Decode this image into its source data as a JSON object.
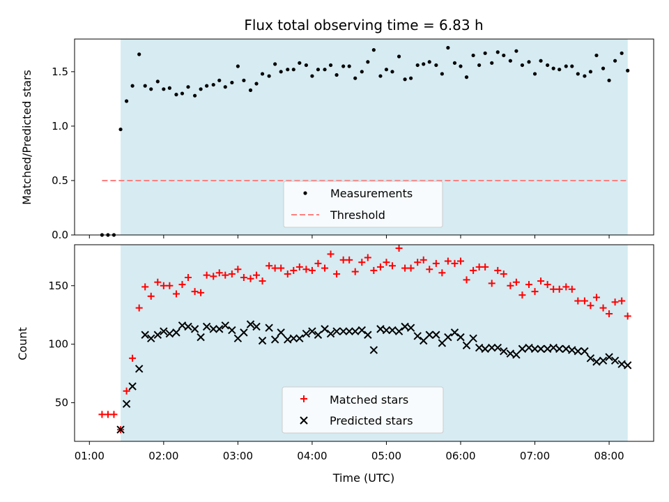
{
  "chart_data": [
    {
      "type": "scatter",
      "title": "Flux total observing time = 6.83 h",
      "xlabel": "",
      "ylabel": "Matched/Predicted stars",
      "ylim": [
        0,
        1.8
      ],
      "yticks": [
        0.0,
        0.5,
        1.0,
        1.5
      ],
      "ytick_labels": [
        "0.0",
        "0.5",
        "1.0",
        "1.5"
      ],
      "xlim_hours": [
        0.8,
        8.6
      ],
      "shaded_span_hours": [
        1.42,
        8.25
      ],
      "shade_color": "#add8e6",
      "legend": {
        "position": "bottom-center",
        "entries": [
          "Measurements",
          "Threshold"
        ]
      },
      "threshold": {
        "name": "Threshold",
        "value": 0.5,
        "x_start_hours": 1.17,
        "x_end_hours": 8.25,
        "color": "#ff7f7f"
      },
      "series": [
        {
          "name": "Measurements",
          "marker": "dot",
          "color": "#000000",
          "x": [
            1.17,
            1.25,
            1.33,
            1.42,
            1.5,
            1.58,
            1.67,
            1.75,
            1.83,
            1.92,
            2.0,
            2.08,
            2.17,
            2.25,
            2.33,
            2.42,
            2.5,
            2.58,
            2.67,
            2.75,
            2.83,
            2.92,
            3.0,
            3.08,
            3.17,
            3.25,
            3.33,
            3.42,
            3.5,
            3.58,
            3.67,
            3.75,
            3.83,
            3.92,
            4.0,
            4.08,
            4.17,
            4.25,
            4.33,
            4.42,
            4.5,
            4.58,
            4.67,
            4.75,
            4.83,
            4.92,
            5.0,
            5.08,
            5.17,
            5.25,
            5.33,
            5.42,
            5.5,
            5.58,
            5.67,
            5.75,
            5.83,
            5.92,
            6.0,
            6.08,
            6.17,
            6.25,
            6.33,
            6.42,
            6.5,
            6.58,
            6.67,
            6.75,
            6.83,
            6.92,
            7.0,
            7.08,
            7.17,
            7.25,
            7.33,
            7.42,
            7.5,
            7.58,
            7.67,
            7.75,
            7.83,
            7.92,
            8.0,
            8.08,
            8.17,
            8.25
          ],
          "y": [
            0.0,
            0.0,
            0.0,
            0.97,
            1.23,
            1.37,
            1.66,
            1.37,
            1.34,
            1.41,
            1.34,
            1.35,
            1.29,
            1.3,
            1.36,
            1.28,
            1.34,
            1.37,
            1.38,
            1.42,
            1.36,
            1.4,
            1.55,
            1.42,
            1.33,
            1.39,
            1.48,
            1.46,
            1.57,
            1.5,
            1.52,
            1.52,
            1.58,
            1.56,
            1.46,
            1.52,
            1.52,
            1.56,
            1.47,
            1.55,
            1.55,
            1.44,
            1.5,
            1.59,
            1.7,
            1.46,
            1.52,
            1.5,
            1.64,
            1.43,
            1.44,
            1.56,
            1.57,
            1.59,
            1.56,
            1.48,
            1.72,
            1.58,
            1.55,
            1.45,
            1.65,
            1.56,
            1.67,
            1.58,
            1.68,
            1.65,
            1.6,
            1.69,
            1.56,
            1.59,
            1.48,
            1.6,
            1.56,
            1.53,
            1.52,
            1.55,
            1.55,
            1.48,
            1.46,
            1.5,
            1.65,
            1.53,
            1.42,
            1.6,
            1.67,
            1.51
          ]
        }
      ]
    },
    {
      "type": "scatter",
      "title": "",
      "xlabel": "Time (UTC)",
      "ylabel": "Count",
      "ylim": [
        17,
        185
      ],
      "yticks": [
        50,
        100,
        150
      ],
      "ytick_labels": [
        "50",
        "100",
        "150"
      ],
      "xlim_hours": [
        0.8,
        8.6
      ],
      "xticks_hours": [
        1,
        2,
        3,
        4,
        5,
        6,
        7,
        8
      ],
      "xtick_labels": [
        "01:00",
        "02:00",
        "03:00",
        "04:00",
        "05:00",
        "06:00",
        "07:00",
        "08:00"
      ],
      "shaded_span_hours": [
        1.42,
        8.25
      ],
      "shade_color": "#add8e6",
      "legend": {
        "position": "bottom-center",
        "entries": [
          "Matched stars",
          "Predicted stars"
        ]
      },
      "series": [
        {
          "name": "Matched stars",
          "marker": "plus",
          "color": "#ff0000",
          "x": [
            1.17,
            1.25,
            1.33,
            1.42,
            1.5,
            1.58,
            1.67,
            1.75,
            1.83,
            1.92,
            2.0,
            2.08,
            2.17,
            2.25,
            2.33,
            2.42,
            2.5,
            2.58,
            2.67,
            2.75,
            2.83,
            2.92,
            3.0,
            3.08,
            3.17,
            3.25,
            3.33,
            3.42,
            3.5,
            3.58,
            3.67,
            3.75,
            3.83,
            3.92,
            4.0,
            4.08,
            4.17,
            4.25,
            4.33,
            4.42,
            4.5,
            4.58,
            4.67,
            4.75,
            4.83,
            4.92,
            5.0,
            5.08,
            5.17,
            5.25,
            5.33,
            5.42,
            5.5,
            5.58,
            5.67,
            5.75,
            5.83,
            5.92,
            6.0,
            6.08,
            6.17,
            6.25,
            6.33,
            6.42,
            6.5,
            6.58,
            6.67,
            6.75,
            6.83,
            6.92,
            7.0,
            7.08,
            7.17,
            7.25,
            7.33,
            7.42,
            7.5,
            7.58,
            7.67,
            7.75,
            7.83,
            7.92,
            8.0,
            8.08,
            8.17,
            8.25
          ],
          "y": [
            40,
            40,
            40,
            27,
            60,
            88,
            131,
            149,
            141,
            153,
            150,
            150,
            143,
            151,
            157,
            145,
            144,
            159,
            158,
            161,
            159,
            160,
            164,
            157,
            156,
            159,
            154,
            167,
            165,
            165,
            160,
            163,
            166,
            164,
            163,
            169,
            165,
            177,
            160,
            172,
            172,
            162,
            170,
            174,
            163,
            166,
            170,
            167,
            182,
            165,
            165,
            170,
            172,
            164,
            169,
            161,
            171,
            169,
            171,
            155,
            163,
            166,
            166,
            152,
            163,
            160,
            150,
            153,
            142,
            151,
            145,
            154,
            151,
            147,
            147,
            149,
            147,
            137,
            137,
            133,
            140,
            131,
            126,
            136,
            137,
            124
          ]
        },
        {
          "name": "Predicted stars",
          "marker": "x",
          "color": "#000000",
          "x": [
            1.42,
            1.5,
            1.58,
            1.67,
            1.75,
            1.83,
            1.92,
            2.0,
            2.08,
            2.17,
            2.25,
            2.33,
            2.42,
            2.5,
            2.58,
            2.67,
            2.75,
            2.83,
            2.92,
            3.0,
            3.08,
            3.17,
            3.25,
            3.33,
            3.42,
            3.5,
            3.58,
            3.67,
            3.75,
            3.83,
            3.92,
            4.0,
            4.08,
            4.17,
            4.25,
            4.33,
            4.42,
            4.5,
            4.58,
            4.67,
            4.75,
            4.83,
            4.92,
            5.0,
            5.08,
            5.17,
            5.25,
            5.33,
            5.42,
            5.5,
            5.58,
            5.67,
            5.75,
            5.83,
            5.92,
            6.0,
            6.08,
            6.17,
            6.25,
            6.33,
            6.42,
            6.5,
            6.58,
            6.67,
            6.75,
            6.83,
            6.92,
            7.0,
            7.08,
            7.17,
            7.25,
            7.33,
            7.42,
            7.5,
            7.58,
            7.67,
            7.75,
            7.83,
            7.92,
            8.0,
            8.08,
            8.17,
            8.25
          ],
          "y": [
            27,
            49,
            64,
            79,
            108,
            105,
            108,
            111,
            109,
            110,
            116,
            115,
            113,
            106,
            115,
            113,
            113,
            116,
            112,
            105,
            110,
            117,
            115,
            103,
            114,
            104,
            110,
            104,
            105,
            105,
            109,
            111,
            108,
            113,
            109,
            111,
            111,
            111,
            111,
            112,
            108,
            95,
            113,
            112,
            112,
            111,
            115,
            114,
            107,
            103,
            108,
            108,
            101,
            106,
            110,
            106,
            99,
            105,
            97,
            96,
            97,
            97,
            94,
            92,
            91,
            96,
            97,
            96,
            96,
            96,
            97,
            96,
            96,
            95,
            94,
            94,
            88,
            85,
            86,
            89,
            86,
            83,
            82
          ]
        }
      ]
    }
  ]
}
